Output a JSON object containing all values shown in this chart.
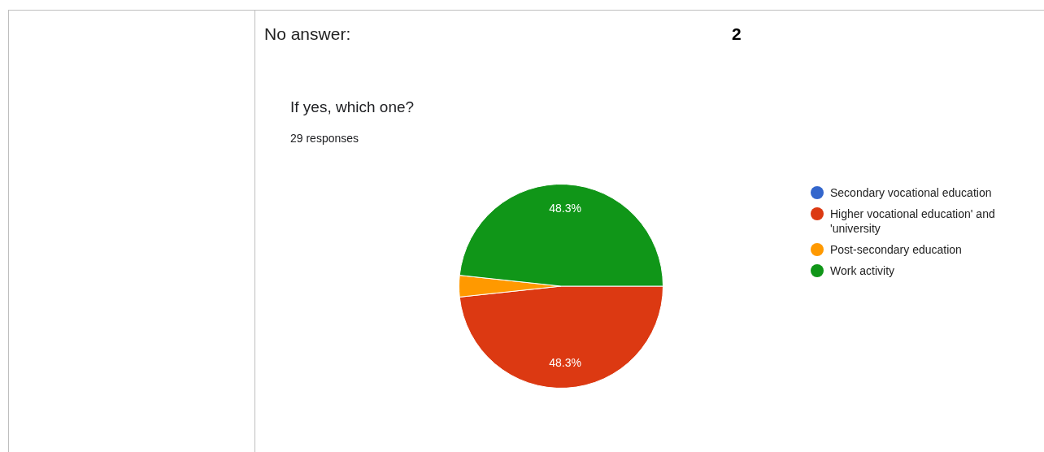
{
  "chart_data": {
    "type": "pie",
    "title": "If yes, which one?",
    "subtitle": "29 responses",
    "annotations": [
      "No answer:",
      "2"
    ],
    "categories": [
      "Secondary vocational education",
      "Higher vocational education' and 'university",
      "Post-secondary education",
      "Work activity"
    ],
    "values": [
      0,
      48.3,
      3.4,
      48.3
    ],
    "colors": [
      "#3366cc",
      "#dc3912",
      "#ff9900",
      "#109618"
    ],
    "value_labels": [
      null,
      "48.3%",
      null,
      "48.3%"
    ],
    "legend": "right"
  }
}
